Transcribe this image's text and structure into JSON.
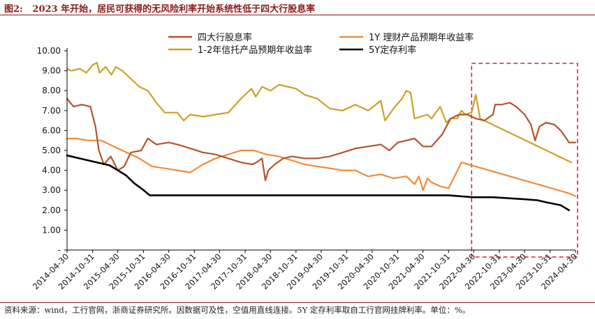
{
  "title": "图2:   2023 年开始，居民可获得的无风险利率开始系统性低于四大行股息率",
  "source": "资料来源：wind，工行官网，浙商证券研究所。因数据可及性，空值用直线连接。5Y 定存利率取自工行官网挂牌利率。单位：%。",
  "chart_data": {
    "type": "line",
    "title": "",
    "xlabel": "",
    "ylabel": "",
    "ylim": [
      0,
      10
    ],
    "y_ticks": [
      "-",
      "1.00",
      "2.00",
      "3.00",
      "4.00",
      "5.00",
      "6.00",
      "7.00",
      "8.00",
      "9.00",
      "10.00"
    ],
    "x_ticks": [
      "2014-04-30",
      "2014-10-31",
      "2015-04-30",
      "2015-10-31",
      "2016-04-30",
      "2016-10-31",
      "2017-04-30",
      "2017-10-31",
      "2018-04-30",
      "2018-10-31",
      "2019-04-30",
      "2019-10-31",
      "2020-04-30",
      "2020-10-31",
      "2021-04-30",
      "2021-10-31",
      "2022-04-30",
      "2022-10-31",
      "2023-04-30",
      "2023-10-31",
      "2024-04-30"
    ],
    "x_range": [
      "2014-04-30",
      "2024-04-30"
    ],
    "legend_position": "top",
    "highlight_box": {
      "from": "2022-04-15",
      "to": "2024-05-15"
    },
    "series": [
      {
        "name": "四大行股息率",
        "color": "#B5532C",
        "width": 2.2,
        "points": [
          [
            "2014-04-30",
            7.6
          ],
          [
            "2014-06-15",
            7.2
          ],
          [
            "2014-08-15",
            7.3
          ],
          [
            "2014-10-15",
            7.2
          ],
          [
            "2014-11-20",
            6.2
          ],
          [
            "2014-12-15",
            5.0
          ],
          [
            "2015-01-20",
            4.3
          ],
          [
            "2015-03-10",
            4.7
          ],
          [
            "2015-04-30",
            4.0
          ],
          [
            "2015-06-15",
            4.2
          ],
          [
            "2015-08-01",
            4.9
          ],
          [
            "2015-10-15",
            5.0
          ],
          [
            "2015-12-01",
            5.6
          ],
          [
            "2016-02-01",
            5.3
          ],
          [
            "2016-04-30",
            5.4
          ],
          [
            "2016-07-01",
            5.3
          ],
          [
            "2016-10-01",
            5.1
          ],
          [
            "2017-01-01",
            4.9
          ],
          [
            "2017-04-01",
            4.8
          ],
          [
            "2017-07-01",
            4.6
          ],
          [
            "2017-10-01",
            4.4
          ],
          [
            "2017-12-20",
            4.3
          ],
          [
            "2018-01-20",
            4.4
          ],
          [
            "2018-03-01",
            4.6
          ],
          [
            "2018-03-25",
            3.5
          ],
          [
            "2018-04-15",
            4.0
          ],
          [
            "2018-06-01",
            4.3
          ],
          [
            "2018-08-01",
            4.6
          ],
          [
            "2018-10-01",
            4.7
          ],
          [
            "2019-01-01",
            4.6
          ],
          [
            "2019-04-01",
            4.6
          ],
          [
            "2019-07-01",
            4.7
          ],
          [
            "2019-10-01",
            4.9
          ],
          [
            "2020-01-01",
            5.1
          ],
          [
            "2020-04-01",
            5.2
          ],
          [
            "2020-07-01",
            5.3
          ],
          [
            "2020-09-01",
            5.0
          ],
          [
            "2020-11-01",
            5.4
          ],
          [
            "2021-01-01",
            5.5
          ],
          [
            "2021-03-01",
            5.6
          ],
          [
            "2021-05-01",
            5.2
          ],
          [
            "2021-07-01",
            5.2
          ],
          [
            "2021-09-15",
            5.8
          ],
          [
            "2021-11-15",
            6.6
          ],
          [
            "2022-01-15",
            6.8
          ],
          [
            "2022-03-15",
            6.8
          ],
          [
            "2022-05-15",
            6.6
          ],
          [
            "2022-07-15",
            6.5
          ],
          [
            "2022-09-15",
            6.8
          ],
          [
            "2022-10-01",
            7.3
          ],
          [
            "2022-11-15",
            7.3
          ],
          [
            "2023-01-15",
            7.4
          ],
          [
            "2023-03-01",
            7.2
          ],
          [
            "2023-05-01",
            6.8
          ],
          [
            "2023-06-15",
            6.3
          ],
          [
            "2023-07-15",
            5.5
          ],
          [
            "2023-08-15",
            6.2
          ],
          [
            "2023-10-01",
            6.4
          ],
          [
            "2023-12-01",
            6.3
          ],
          [
            "2024-01-15",
            6.0
          ],
          [
            "2024-02-15",
            5.7
          ],
          [
            "2024-03-15",
            5.4
          ],
          [
            "2024-04-30",
            5.4
          ]
        ]
      },
      {
        "name": "1Y 理财产品预期年收益率",
        "color": "#F08A3A",
        "width": 2.2,
        "points": [
          [
            "2014-04-30",
            5.6
          ],
          [
            "2014-07-01",
            5.6
          ],
          [
            "2014-10-01",
            5.5
          ],
          [
            "2015-01-01",
            5.5
          ],
          [
            "2015-04-01",
            5.2
          ],
          [
            "2015-07-01",
            4.9
          ],
          [
            "2015-10-01",
            4.6
          ],
          [
            "2016-01-01",
            4.2
          ],
          [
            "2016-04-01",
            4.1
          ],
          [
            "2016-07-01",
            4.0
          ],
          [
            "2016-10-01",
            3.9
          ],
          [
            "2017-01-01",
            4.3
          ],
          [
            "2017-04-01",
            4.6
          ],
          [
            "2017-07-01",
            4.8
          ],
          [
            "2017-10-01",
            5.0
          ],
          [
            "2018-01-01",
            5.0
          ],
          [
            "2018-04-01",
            4.8
          ],
          [
            "2018-07-01",
            4.7
          ],
          [
            "2018-10-01",
            4.5
          ],
          [
            "2019-01-01",
            4.3
          ],
          [
            "2019-04-01",
            4.2
          ],
          [
            "2019-07-01",
            4.1
          ],
          [
            "2019-10-01",
            4.0
          ],
          [
            "2020-01-01",
            4.0
          ],
          [
            "2020-04-01",
            3.7
          ],
          [
            "2020-07-01",
            3.8
          ],
          [
            "2020-10-01",
            3.6
          ],
          [
            "2021-01-01",
            3.7
          ],
          [
            "2021-03-01",
            3.3
          ],
          [
            "2021-04-01",
            3.7
          ],
          [
            "2021-05-01",
            3.0
          ],
          [
            "2021-06-01",
            3.6
          ],
          [
            "2021-07-01",
            3.4
          ],
          [
            "2021-09-01",
            3.2
          ],
          [
            "2021-11-01",
            3.1
          ],
          [
            "2022-02-01",
            4.4
          ],
          [
            "2024-03-15",
            2.85
          ],
          [
            "2024-04-30",
            2.7
          ]
        ]
      },
      {
        "name": "1-2年信托产品预期年收益率",
        "color": "#C9A227",
        "width": 2.2,
        "points": [
          [
            "2014-04-30",
            9.1
          ],
          [
            "2014-06-01",
            9.0
          ],
          [
            "2014-08-01",
            9.1
          ],
          [
            "2014-09-15",
            8.9
          ],
          [
            "2014-11-01",
            9.3
          ],
          [
            "2014-12-01",
            9.4
          ],
          [
            "2014-12-20",
            8.9
          ],
          [
            "2015-02-01",
            9.2
          ],
          [
            "2015-03-15",
            8.8
          ],
          [
            "2015-04-15",
            9.2
          ],
          [
            "2015-06-01",
            9.0
          ],
          [
            "2015-08-01",
            8.6
          ],
          [
            "2015-10-01",
            8.2
          ],
          [
            "2015-12-01",
            8.0
          ],
          [
            "2016-02-01",
            7.4
          ],
          [
            "2016-04-01",
            6.9
          ],
          [
            "2016-07-01",
            6.9
          ],
          [
            "2016-08-15",
            6.5
          ],
          [
            "2016-10-01",
            6.8
          ],
          [
            "2017-01-01",
            6.7
          ],
          [
            "2017-04-01",
            6.8
          ],
          [
            "2017-07-01",
            6.9
          ],
          [
            "2017-10-01",
            7.6
          ],
          [
            "2017-12-15",
            8.1
          ],
          [
            "2018-01-15",
            7.7
          ],
          [
            "2018-03-01",
            8.2
          ],
          [
            "2018-05-01",
            8.0
          ],
          [
            "2018-07-01",
            8.3
          ],
          [
            "2018-09-01",
            8.2
          ],
          [
            "2018-11-01",
            8.1
          ],
          [
            "2019-01-01",
            7.8
          ],
          [
            "2019-04-01",
            7.6
          ],
          [
            "2019-07-01",
            7.1
          ],
          [
            "2019-10-01",
            7.0
          ],
          [
            "2020-01-01",
            7.3
          ],
          [
            "2020-04-01",
            7.0
          ],
          [
            "2020-07-01",
            7.5
          ],
          [
            "2020-08-01",
            6.5
          ],
          [
            "2020-10-01",
            7.1
          ],
          [
            "2020-12-01",
            7.6
          ],
          [
            "2021-01-01",
            8.0
          ],
          [
            "2021-02-01",
            7.9
          ],
          [
            "2021-03-01",
            6.6
          ],
          [
            "2021-06-01",
            6.8
          ],
          [
            "2021-07-01",
            6.6
          ],
          [
            "2021-09-01",
            7.2
          ],
          [
            "2021-10-15",
            6.4
          ],
          [
            "2021-11-15",
            6.6
          ],
          [
            "2022-01-01",
            6.6
          ],
          [
            "2022-02-01",
            7.0
          ],
          [
            "2022-03-01",
            6.8
          ],
          [
            "2022-04-15",
            6.9
          ],
          [
            "2022-05-15",
            7.8
          ],
          [
            "2022-06-15",
            6.6
          ],
          [
            "2024-04-01",
            4.4
          ]
        ]
      },
      {
        "name": "5Y定存利率",
        "color": "#000000",
        "width": 2.6,
        "points": [
          [
            "2014-04-30",
            4.75
          ],
          [
            "2015-03-01",
            4.25
          ],
          [
            "2015-05-01",
            4.0
          ],
          [
            "2015-06-28",
            3.75
          ],
          [
            "2015-08-26",
            3.35
          ],
          [
            "2015-10-24",
            3.05
          ],
          [
            "2015-12-15",
            2.75
          ],
          [
            "2018-10-31",
            2.75
          ],
          [
            "2019-10-31",
            2.75
          ],
          [
            "2020-10-31",
            2.75
          ],
          [
            "2021-10-31",
            2.75
          ],
          [
            "2022-04-25",
            2.65
          ],
          [
            "2022-09-15",
            2.65
          ],
          [
            "2023-04-30",
            2.55
          ],
          [
            "2023-08-01",
            2.5
          ],
          [
            "2023-10-01",
            2.4
          ],
          [
            "2024-01-15",
            2.25
          ],
          [
            "2024-03-15",
            2.0
          ]
        ]
      }
    ]
  }
}
